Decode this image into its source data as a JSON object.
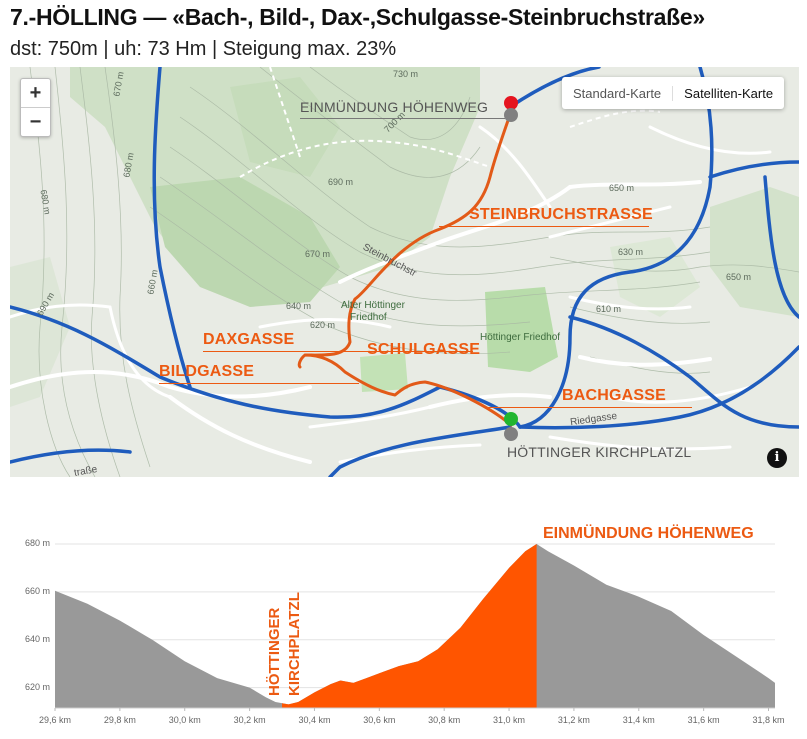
{
  "header": {
    "title": "7.-HÖLLING — «Bach-, Bild-, Dax-,Schulgasse-Steinbruchstraße»",
    "subtitle": "dst: 750m | uh: 73 Hm | Steigung max. 23%"
  },
  "map": {
    "zoom_in": "+",
    "zoom_out": "−",
    "map_type": {
      "standard": "Standard-Karte",
      "satellite": "Satelliten-Karte"
    },
    "info": "i",
    "colors": {
      "route": "#e25a18",
      "road": "#1e5bbd",
      "start": "#21b52f",
      "end": "#e5141f",
      "label": "#ec5a12"
    },
    "street_labels": {
      "steinbruchstrasse": "STEINBRUCHSTRASSE",
      "daxgasse": "DAXGASSE",
      "schulgasse": "SCHULGASSE",
      "bildgasse": "BILDGASSE",
      "bachgasse": "BACHGASSE"
    },
    "point_labels": {
      "end": "EINMÜNDUNG HÖHENWEG",
      "start": "HÖTTINGER KIRCHPLATZL"
    },
    "place_labels": {
      "alter_friedhof_1": "Alter Höttinger",
      "alter_friedhof_2": "Friedhof",
      "friedhof": "Höttinger Friedhof",
      "steinbruchstr": "Steinbruchstr",
      "riedgasse": "Riedgasse",
      "strasse": "traße"
    },
    "contour_labels": [
      "730 m",
      "700 m",
      "690 m",
      "680 m",
      "670 m",
      "660 m",
      "650 m",
      "640 m",
      "630 m",
      "620 m",
      "610 m",
      "670 m",
      "680 m",
      "690 m",
      "650 m"
    ]
  },
  "profile": {
    "labels": {
      "top": "EINMÜNDUNG HÖHENWEG",
      "start_1": "HÖTTINGER",
      "start_2": "KIRCHPLATZL"
    },
    "colors": {
      "highlight": "#ff5500",
      "terrain": "#999999"
    }
  },
  "chart_data": {
    "type": "area",
    "xlabel": "",
    "ylabel": "",
    "x_ticks": [
      "29,6 km",
      "29,8 km",
      "30,0 km",
      "30,2 km",
      "30,4 km",
      "30,6 km",
      "30,8 km",
      "31,0 km",
      "31,2 km",
      "31,4 km",
      "31,6 km",
      "31,8 km"
    ],
    "y_ticks": [
      "680 m",
      "660 m",
      "640 m",
      "620 m"
    ],
    "xlim": [
      29.6,
      31.82
    ],
    "ylim": [
      611.5,
      685
    ],
    "grid": true,
    "highlight_range": [
      30.3,
      31.085
    ],
    "series": [
      {
        "x": [
          29.6,
          29.7,
          29.8,
          29.9,
          30.0,
          30.1,
          30.2,
          30.25,
          30.28,
          30.32,
          30.35,
          30.4,
          30.45,
          30.48,
          30.52,
          30.56,
          30.62,
          30.66,
          30.72,
          30.78,
          30.85,
          30.92,
          31.0,
          31.05,
          31.085,
          31.12,
          31.2,
          31.3,
          31.4,
          31.5,
          31.6,
          31.7,
          31.8,
          31.82
        ],
        "values": [
          660.5,
          655,
          648,
          640,
          631,
          624,
          620,
          616,
          614,
          613,
          614,
          618,
          621.5,
          623,
          622,
          624,
          627,
          629,
          631,
          636,
          645,
          657,
          670,
          677,
          680,
          677,
          671,
          663,
          658,
          652,
          642,
          633,
          624,
          622
        ]
      }
    ]
  }
}
